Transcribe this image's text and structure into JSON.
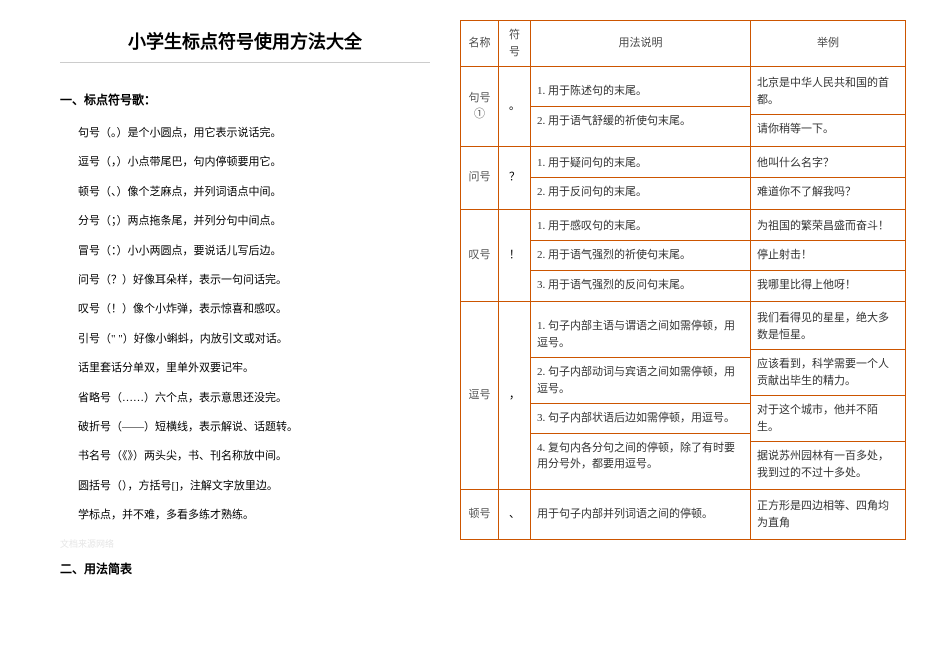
{
  "title": "小学生标点符号使用方法大全",
  "section1_heading": "一、标点符号歌：",
  "rhyme_lines": [
    "句号（。）是个小圆点，用它表示说话完。",
    "逗号（，）小点带尾巴，句内停顿要用它。",
    "顿号（、）像个芝麻点，并列词语点中间。",
    "分号（；）两点拖条尾，并列分句中间点。",
    "冒号（：）小小两圆点，要说话儿写后边。",
    "问号（？）好像耳朵样，表示一句问话完。",
    "叹号（！）像个小炸弹，表示惊喜和感叹。",
    "引号（\" \"）好像小蝌蚪，内放引文或对话。",
    "话里套话分单双，里单外双要记牢。",
    "省略号（……）六个点，表示意思还没完。",
    "破折号（——）短横线，表示解说、话题转。",
    "书名号（《》）两头尖，书、刊名称放中间。",
    "圆括号（），方括号[]，注解文字放里边。",
    "学标点，并不难，多看多练才熟练。"
  ],
  "watermark": "文档来源网络",
  "section2_heading": "二、用法简表",
  "table": {
    "border_color": "#cc5500",
    "headers": [
      "名称",
      "符号",
      "用法说明",
      "举例"
    ],
    "rows": [
      {
        "name": "句号①",
        "symbol": "。",
        "usages": [
          "1. 用于陈述句的末尾。",
          "2. 用于语气舒缓的祈使句末尾。"
        ],
        "examples": [
          "北京是中华人民共和国的首都。",
          "请你稍等一下。"
        ]
      },
      {
        "name": "问号",
        "symbol": "？",
        "usages": [
          "1. 用于疑问句的末尾。",
          "2. 用于反问句的末尾。"
        ],
        "examples": [
          "他叫什么名字？",
          "难道你不了解我吗？"
        ]
      },
      {
        "name": "叹号",
        "symbol": "！",
        "usages": [
          "1. 用于感叹句的末尾。",
          "2. 用于语气强烈的祈使句末尾。",
          "3. 用于语气强烈的反问句末尾。"
        ],
        "examples": [
          "为祖国的繁荣昌盛而奋斗！",
          "停止射击！",
          "我哪里比得上他呀！"
        ]
      },
      {
        "name": "逗号",
        "symbol": "，",
        "usages": [
          "1. 句子内部主语与谓语之间如需停顿，用逗号。",
          "2. 句子内部动词与宾语之间如需停顿，用逗号。",
          "3. 句子内部状语后边如需停顿，用逗号。",
          "4. 复句内各分句之间的停顿，除了有时要用分号外，都要用逗号。"
        ],
        "examples": [
          "我们看得见的星星，绝大多数是恒星。",
          "应该看到，科学需要一个人贡献出毕生的精力。",
          "对于这个城市，他并不陌生。",
          "据说苏州园林有一百多处，我到过的不过十多处。"
        ]
      },
      {
        "name": "顿号",
        "symbol": "、",
        "usages": [
          "用于句子内部并列词语之间的停顿。"
        ],
        "examples": [
          "正方形是四边相等、四角均为直角"
        ]
      }
    ]
  }
}
